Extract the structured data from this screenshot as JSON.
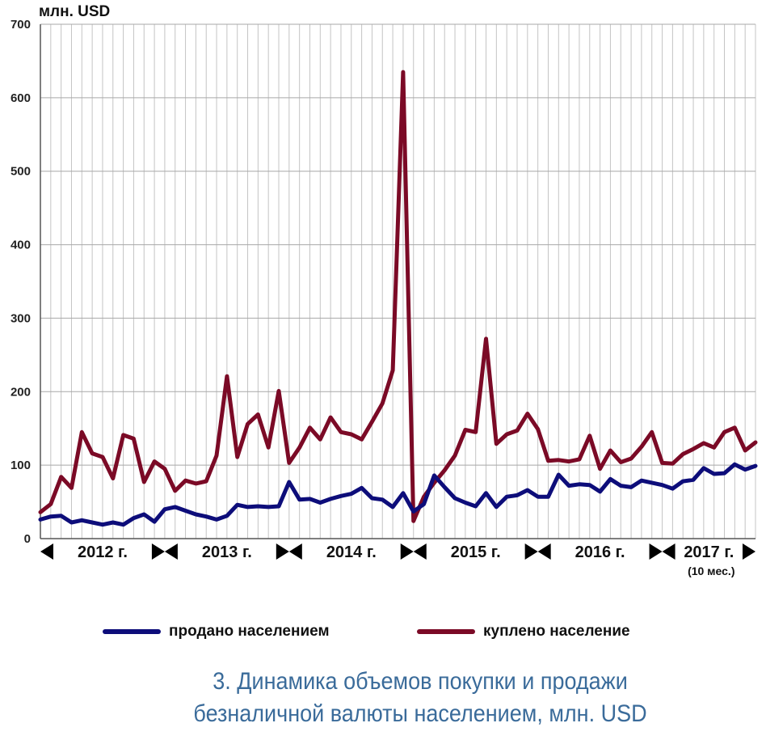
{
  "unit_label": "млн. USD",
  "colors": {
    "sold": "#0d0d7a",
    "bought": "#7b0a26",
    "caption": "#3a6b9a"
  },
  "legend": {
    "sold": "продано населением",
    "bought": "куплено население"
  },
  "caption": {
    "line1": "3. Динамика объемов покупки и продажи",
    "line2": "безналичной валюты населением, млн. USD"
  },
  "chart_data": {
    "type": "line",
    "title": "",
    "ylim": [
      0,
      700
    ],
    "yticks": [
      0,
      100,
      200,
      300,
      400,
      500,
      600,
      700
    ],
    "grid": true,
    "years": [
      {
        "label": "2012 г.",
        "note": ""
      },
      {
        "label": "2013 г.",
        "note": ""
      },
      {
        "label": "2014 г.",
        "note": ""
      },
      {
        "label": "2015 г.",
        "note": ""
      },
      {
        "label": "2016 г.",
        "note": ""
      },
      {
        "label": "2017 г.",
        "note": "(10 мес.)"
      }
    ],
    "series": [
      {
        "name": "продано населением",
        "key": "sold",
        "values": [
          26,
          30,
          31,
          22,
          25,
          22,
          19,
          22,
          19,
          28,
          33,
          23,
          40,
          43,
          38,
          33,
          30,
          26,
          31,
          46,
          43,
          44,
          43,
          44,
          77,
          53,
          54,
          49,
          54,
          58,
          61,
          69,
          55,
          53,
          43,
          62,
          37,
          47,
          86,
          70,
          55,
          49,
          44,
          62,
          43,
          57,
          59,
          66,
          57,
          57,
          87,
          72,
          74,
          73,
          64,
          81,
          72,
          70,
          79,
          76,
          73,
          68,
          78,
          80,
          96,
          88,
          89,
          101,
          94,
          99
        ]
      },
      {
        "name": "куплено население",
        "key": "bought",
        "values": [
          36,
          47,
          84,
          69,
          145,
          116,
          111,
          82,
          141,
          136,
          77,
          105,
          95,
          65,
          79,
          75,
          78,
          113,
          221,
          111,
          156,
          169,
          124,
          201,
          103,
          124,
          151,
          135,
          165,
          145,
          142,
          135,
          159,
          184,
          229,
          635,
          24,
          57,
          76,
          93,
          113,
          148,
          145,
          272,
          129,
          142,
          147,
          170,
          149,
          106,
          107,
          105,
          108,
          140,
          95,
          120,
          104,
          109,
          125,
          145,
          103,
          102,
          115,
          122,
          130,
          124,
          145,
          151,
          120,
          131
        ]
      }
    ]
  }
}
